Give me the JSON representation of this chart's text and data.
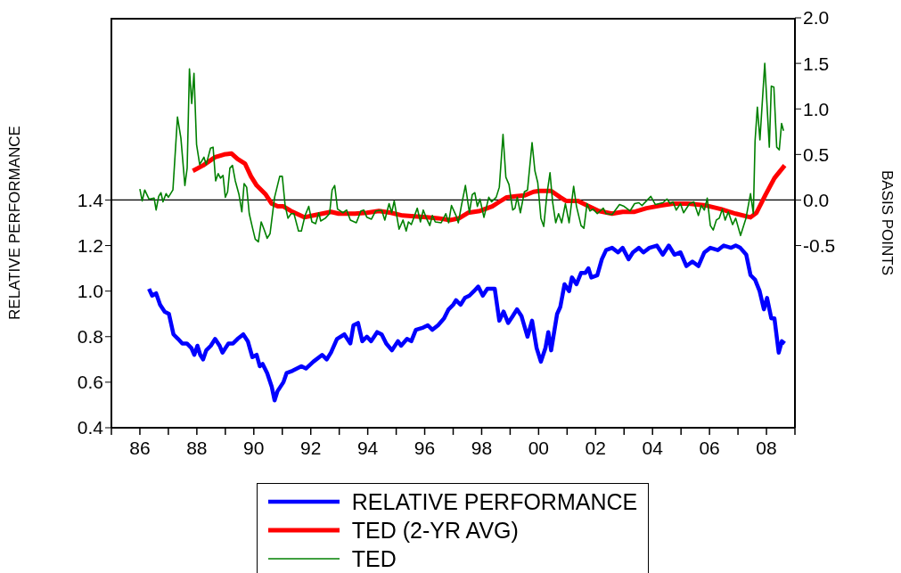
{
  "chart_data": {
    "type": "line",
    "ylabel": "RELATIVE PERFORMANCE",
    "y2label": "BASIS POINTS",
    "xlim": [
      1985,
      2009
    ],
    "xticks": [
      {
        "value": 1985,
        "label": null
      },
      {
        "value": 1986,
        "label": "86"
      },
      {
        "value": 1987,
        "label": null
      },
      {
        "value": 1988,
        "label": "88"
      },
      {
        "value": 1989,
        "label": null
      },
      {
        "value": 1990,
        "label": "90"
      },
      {
        "value": 1991,
        "label": null
      },
      {
        "value": 1992,
        "label": "92"
      },
      {
        "value": 1993,
        "label": null
      },
      {
        "value": 1994,
        "label": "94"
      },
      {
        "value": 1995,
        "label": null
      },
      {
        "value": 1996,
        "label": "96"
      },
      {
        "value": 1997,
        "label": null
      },
      {
        "value": 1998,
        "label": "98"
      },
      {
        "value": 1999,
        "label": null
      },
      {
        "value": 2000,
        "label": "00"
      },
      {
        "value": 2001,
        "label": null
      },
      {
        "value": 2002,
        "label": "02"
      },
      {
        "value": 2003,
        "label": null
      },
      {
        "value": 2004,
        "label": "04"
      },
      {
        "value": 2005,
        "label": null
      },
      {
        "value": 2006,
        "label": "06"
      },
      {
        "value": 2007,
        "label": null
      },
      {
        "value": 2008,
        "label": "08"
      },
      {
        "value": 2009,
        "label": null
      }
    ],
    "ylim": [
      0.4,
      2.2
    ],
    "yticks": [
      0.4,
      0.6,
      0.8,
      {
        "value": 1,
        "label": "1.0"
      },
      1.2,
      1.4
    ],
    "y2lim": [
      -2.5,
      2.0
    ],
    "y2ticks": [
      -0.5,
      {
        "value": 0,
        "label": "0.0"
      },
      0.5,
      {
        "value": 1,
        "label": "1.0"
      },
      1.5,
      {
        "value": 2,
        "label": "2.0"
      }
    ],
    "grid": false,
    "legend": "bottom",
    "marker": "none",
    "line_style": "solid",
    "ref_lines": [
      {
        "axis": "y2",
        "value": 0,
        "color": "#000000"
      }
    ],
    "series": [
      {
        "name": "RELATIVE PERFORMANCE",
        "color": "#0000ff",
        "x": [
          1986.32,
          1986.43,
          1986.57,
          1986.71,
          1986.87,
          1987.02,
          1987.18,
          1987.34,
          1987.49,
          1987.65,
          1987.81,
          1987.91,
          1988.02,
          1988.12,
          1988.22,
          1988.33,
          1988.49,
          1988.64,
          1988.8,
          1988.9,
          1989.11,
          1989.27,
          1989.43,
          1989.63,
          1989.79,
          1989.95,
          1990.1,
          1990.21,
          1990.31,
          1990.47,
          1990.63,
          1990.73,
          1990.83,
          1991.04,
          1991.15,
          1991.36,
          1991.67,
          1991.83,
          1992.09,
          1992.4,
          1992.56,
          1992.71,
          1992.92,
          1993.18,
          1993.39,
          1993.5,
          1993.66,
          1993.81,
          1993.97,
          1994.12,
          1994.33,
          1994.49,
          1994.65,
          1994.85,
          1995.06,
          1995.17,
          1995.38,
          1995.53,
          1995.69,
          1995.95,
          1996.11,
          1996.27,
          1996.47,
          1996.68,
          1996.84,
          1997.0,
          1997.1,
          1997.26,
          1997.41,
          1997.57,
          1997.73,
          1997.88,
          1998.04,
          1998.2,
          1998.46,
          1998.62,
          1998.77,
          1998.93,
          1999.09,
          1999.24,
          1999.4,
          1999.61,
          1999.77,
          1999.93,
          2000.08,
          2000.24,
          2000.34,
          2000.44,
          2000.65,
          2000.76,
          2000.91,
          2001.07,
          2001.17,
          2001.33,
          2001.49,
          2001.64,
          2001.75,
          2001.85,
          2002.06,
          2002.22,
          2002.37,
          2002.58,
          2002.79,
          2002.95,
          2003.16,
          2003.31,
          2003.52,
          2003.68,
          2003.89,
          2004.15,
          2004.36,
          2004.57,
          2004.77,
          2004.98,
          2005.19,
          2005.4,
          2005.61,
          2005.82,
          2006.03,
          2006.29,
          2006.5,
          2006.76,
          2006.92,
          2007.08,
          2007.29,
          2007.44,
          2007.6,
          2007.76,
          2007.91,
          2008.02,
          2008.17,
          2008.28,
          2008.43,
          2008.54,
          2008.64
        ],
        "values": [
          1.01,
          0.98,
          0.99,
          0.94,
          0.91,
          0.9,
          0.81,
          0.79,
          0.77,
          0.77,
          0.75,
          0.72,
          0.76,
          0.72,
          0.7,
          0.74,
          0.76,
          0.79,
          0.76,
          0.73,
          0.77,
          0.77,
          0.79,
          0.81,
          0.78,
          0.71,
          0.72,
          0.67,
          0.68,
          0.64,
          0.58,
          0.52,
          0.56,
          0.6,
          0.64,
          0.65,
          0.67,
          0.66,
          0.69,
          0.72,
          0.7,
          0.73,
          0.79,
          0.81,
          0.77,
          0.85,
          0.86,
          0.78,
          0.8,
          0.78,
          0.82,
          0.81,
          0.77,
          0.74,
          0.78,
          0.76,
          0.79,
          0.78,
          0.83,
          0.84,
          0.85,
          0.83,
          0.85,
          0.88,
          0.92,
          0.94,
          0.96,
          0.94,
          0.97,
          0.98,
          1.0,
          1.02,
          0.98,
          1.01,
          1.01,
          0.87,
          0.91,
          0.86,
          0.89,
          0.92,
          0.89,
          0.8,
          0.87,
          0.75,
          0.69,
          0.75,
          0.82,
          0.74,
          0.9,
          0.93,
          1.03,
          1.0,
          1.06,
          1.03,
          1.08,
          1.08,
          1.1,
          1.06,
          1.07,
          1.14,
          1.18,
          1.19,
          1.17,
          1.19,
          1.14,
          1.17,
          1.19,
          1.17,
          1.19,
          1.2,
          1.16,
          1.2,
          1.16,
          1.17,
          1.11,
          1.13,
          1.11,
          1.17,
          1.19,
          1.18,
          1.2,
          1.19,
          1.2,
          1.19,
          1.16,
          1.07,
          1.05,
          1.0,
          0.92,
          0.97,
          0.88,
          0.88,
          0.73,
          0.78,
          0.77
        ]
      },
      {
        "name": "TED (2-YR AVG)",
        "color": "#ff0000",
        "axis": "y2",
        "x": [
          1987.86,
          1988.22,
          1988.64,
          1988.96,
          1989.22,
          1989.43,
          1989.69,
          1989.9,
          1990.1,
          1990.42,
          1990.63,
          1990.84,
          1991.04,
          1991.3,
          1991.57,
          1991.77,
          1992.09,
          1992.4,
          1992.71,
          1992.98,
          1993.18,
          1993.55,
          1993.97,
          1994.39,
          1994.81,
          1995.22,
          1995.64,
          1996.06,
          1996.47,
          1996.89,
          1997.21,
          1997.52,
          1997.94,
          1998.37,
          1998.62,
          1998.88,
          1999.19,
          1999.5,
          1999.82,
          2000.03,
          2000.44,
          2000.76,
          2000.96,
          2001.07,
          2001.38,
          2001.7,
          2002.11,
          2002.58,
          2002.95,
          2003.37,
          2003.79,
          2004.31,
          2004.73,
          2005.25,
          2005.88,
          2006.4,
          2006.92,
          2007.44,
          2007.65,
          2007.97,
          2008.28,
          2008.64
        ],
        "values": [
          0.32,
          0.38,
          0.47,
          0.5,
          0.51,
          0.45,
          0.4,
          0.26,
          0.16,
          0.06,
          -0.04,
          -0.07,
          -0.07,
          -0.12,
          -0.16,
          -0.19,
          -0.17,
          -0.15,
          -0.13,
          -0.15,
          -0.15,
          -0.15,
          -0.14,
          -0.12,
          -0.14,
          -0.17,
          -0.18,
          -0.19,
          -0.2,
          -0.22,
          -0.2,
          -0.14,
          -0.12,
          -0.07,
          -0.02,
          0.03,
          0.04,
          0.05,
          0.09,
          0.1,
          0.1,
          0.03,
          -0.01,
          -0.01,
          -0.01,
          -0.06,
          -0.12,
          -0.15,
          -0.13,
          -0.13,
          -0.09,
          -0.06,
          -0.04,
          -0.04,
          -0.06,
          -0.1,
          -0.15,
          -0.19,
          -0.14,
          0.06,
          0.24,
          0.38
        ]
      },
      {
        "name": "TED",
        "color": "#008000",
        "axis": "y2",
        "x": [
          1986.0,
          1986.08,
          1986.17,
          1986.32,
          1986.5,
          1986.57,
          1986.66,
          1986.74,
          1986.81,
          1986.92,
          1987.0,
          1987.16,
          1987.32,
          1987.44,
          1987.58,
          1987.66,
          1987.74,
          1987.82,
          1987.9,
          1987.99,
          1988.1,
          1988.25,
          1988.33,
          1988.48,
          1988.57,
          1988.66,
          1988.75,
          1988.83,
          1988.92,
          1989.0,
          1989.08,
          1989.16,
          1989.25,
          1989.35,
          1989.48,
          1989.58,
          1989.66,
          1989.75,
          1989.84,
          1989.95,
          1990.05,
          1990.16,
          1990.26,
          1990.37,
          1990.47,
          1990.57,
          1990.73,
          1990.91,
          1991.0,
          1991.1,
          1991.2,
          1991.31,
          1991.41,
          1991.57,
          1991.67,
          1991.8,
          1991.93,
          1992.04,
          1992.17,
          1992.28,
          1992.35,
          1992.51,
          1992.66,
          1992.75,
          1992.84,
          1992.94,
          1993.13,
          1993.26,
          1993.39,
          1993.6,
          1993.76,
          1993.86,
          1993.97,
          1994.13,
          1994.28,
          1994.49,
          1994.6,
          1994.75,
          1994.84,
          1994.93,
          1995.1,
          1995.24,
          1995.35,
          1995.43,
          1995.53,
          1995.74,
          1995.85,
          1995.95,
          1996.06,
          1996.18,
          1996.27,
          1996.37,
          1996.58,
          1996.74,
          1996.84,
          1996.94,
          1997.1,
          1997.18,
          1997.29,
          1997.43,
          1997.57,
          1997.67,
          1997.76,
          1997.85,
          1997.94,
          1998.08,
          1998.25,
          1998.35,
          1998.51,
          1998.62,
          1998.75,
          1998.85,
          1998.96,
          1999.09,
          1999.17,
          1999.25,
          1999.36,
          1999.5,
          1999.61,
          1999.77,
          1999.87,
          1999.97,
          2000.08,
          2000.18,
          2000.29,
          2000.4,
          2000.49,
          2000.6,
          2000.7,
          2000.81,
          2000.94,
          2001.04,
          2001.07,
          2001.23,
          2001.33,
          2001.49,
          2001.59,
          2001.7,
          2001.8,
          2001.91,
          2002.06,
          2002.27,
          2002.37,
          2002.58,
          2002.84,
          2003.0,
          2003.21,
          2003.37,
          2003.52,
          2003.63,
          2003.94,
          2004.1,
          2004.36,
          2004.51,
          2004.62,
          2004.72,
          2004.83,
          2004.98,
          2005.09,
          2005.3,
          2005.45,
          2005.61,
          2005.71,
          2005.82,
          2005.92,
          2006.03,
          2006.13,
          2006.24,
          2006.34,
          2006.45,
          2006.55,
          2006.66,
          2006.81,
          2006.92,
          2007.09,
          2007.28,
          2007.44,
          2007.54,
          2007.6,
          2007.68,
          2007.77,
          2007.94,
          2008.1,
          2008.17,
          2008.26,
          2008.36,
          2008.45,
          2008.53,
          2008.6
        ],
        "values": [
          0.12,
          -0.01,
          0.11,
          0.01,
          0.02,
          -0.11,
          0.04,
          0.08,
          -0.02,
          0.07,
          0.03,
          0.11,
          0.91,
          0.68,
          0.16,
          0.35,
          1.44,
          1.06,
          1.39,
          0.61,
          0.39,
          0.47,
          0.39,
          0.57,
          0.58,
          0.21,
          0.29,
          0.24,
          0.27,
          0.03,
          0.09,
          0.35,
          0.38,
          0.21,
          0.06,
          -0.13,
          0.18,
          0.14,
          -0.15,
          -0.3,
          -0.43,
          -0.46,
          -0.24,
          -0.33,
          -0.42,
          -0.37,
          0.03,
          0.26,
          0.26,
          -0.06,
          -0.2,
          -0.15,
          -0.15,
          -0.34,
          -0.34,
          -0.17,
          -0.07,
          -0.24,
          -0.26,
          -0.14,
          -0.23,
          -0.2,
          -0.15,
          0.11,
          0.16,
          -0.1,
          -0.14,
          -0.11,
          -0.22,
          -0.25,
          -0.12,
          -0.11,
          -0.19,
          -0.21,
          -0.12,
          -0.11,
          -0.22,
          -0.04,
          -0.14,
          -0.01,
          -0.32,
          -0.22,
          -0.34,
          -0.24,
          -0.27,
          -0.09,
          -0.24,
          -0.11,
          -0.2,
          -0.28,
          -0.17,
          -0.24,
          -0.25,
          -0.15,
          -0.25,
          -0.06,
          -0.17,
          -0.25,
          -0.06,
          0.16,
          -0.14,
          0.06,
          0.08,
          -0.07,
          0.01,
          -0.19,
          0.03,
          -0.02,
          0.03,
          0.14,
          0.72,
          0.25,
          0.17,
          -0.11,
          -0.09,
          0.03,
          -0.14,
          0.09,
          0.11,
          0.63,
          0.32,
          0.19,
          -0.2,
          -0.29,
          0.06,
          0.3,
          -0.02,
          -0.25,
          -0.15,
          -0.25,
          -0.04,
          -0.2,
          -0.25,
          0.15,
          -0.07,
          -0.28,
          -0.31,
          -0.04,
          -0.12,
          -0.1,
          -0.15,
          -0.09,
          -0.15,
          -0.16,
          -0.05,
          -0.07,
          -0.12,
          -0.04,
          -0.03,
          -0.06,
          0.04,
          -0.05,
          -0.03,
          0.01,
          -0.04,
          -0.02,
          -0.11,
          -0.04,
          -0.14,
          -0.04,
          -0.02,
          -0.17,
          -0.06,
          -0.11,
          0.02,
          -0.28,
          -0.33,
          -0.22,
          -0.2,
          -0.1,
          -0.22,
          -0.13,
          -0.27,
          -0.2,
          -0.39,
          -0.2,
          0.07,
          -0.15,
          0.65,
          1.02,
          0.66,
          1.5,
          0.58,
          1.25,
          1.24,
          0.58,
          0.55,
          0.84,
          0.76
        ]
      }
    ]
  }
}
